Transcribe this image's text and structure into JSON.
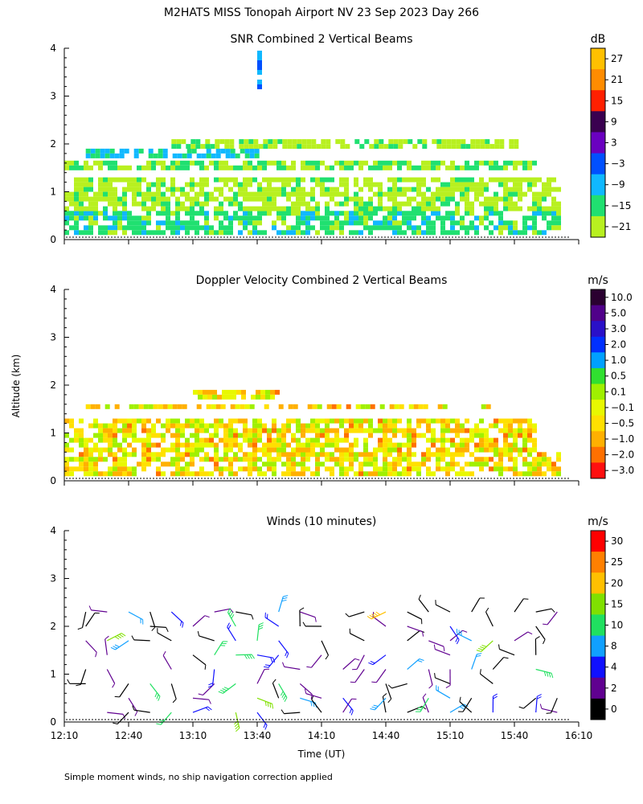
{
  "title": "M2HATS MISS Tonopah Airport NV  23 Sep 2023 Day 266",
  "ylabel": "Altitude (km)",
  "xlabel": "Time (UT)",
  "footnote": "Simple moment winds, no ship navigation correction applied",
  "x_ticks": [
    "12:10",
    "12:40",
    "13:10",
    "13:40",
    "14:10",
    "14:40",
    "15:10",
    "15:40",
    "16:10"
  ],
  "y_ticks": [
    "0",
    "1",
    "2",
    "3",
    "4"
  ],
  "panels": [
    {
      "title": "SNR Combined 2 Vertical Beams",
      "unit": "dB",
      "colorbar_labels": [
        "27",
        "21",
        "15",
        "9",
        "3",
        "−3",
        "−9",
        "−15",
        "−21"
      ],
      "colors": [
        "#ffc000",
        "#ff8c00",
        "#ff2000",
        "#3a0050",
        "#6a00c0",
        "#0050ff",
        "#10b8ff",
        "#20e070",
        "#b8f020"
      ]
    },
    {
      "title": "Doppler Velocity Combined 2 Vertical Beams",
      "unit": "m/s",
      "colorbar_labels": [
        "10.0",
        "5.0",
        "3.0",
        "2.0",
        "1.0",
        "0.5",
        "0.1",
        "−0.1",
        "−0.5",
        "−1.0",
        "−2.0",
        "−3.0"
      ],
      "colors": [
        "#2a0030",
        "#50008a",
        "#2a10c8",
        "#0030ff",
        "#00a0ff",
        "#30e030",
        "#a0f000",
        "#e8f800",
        "#ffe000",
        "#ffb000",
        "#ff7000",
        "#ff1010"
      ]
    },
    {
      "title": "Winds (10 minutes)",
      "unit": "m/s",
      "colorbar_labels": [
        "30",
        "25",
        "20",
        "15",
        "10",
        "8",
        "4",
        "2",
        "0"
      ],
      "colors": [
        "#ff0000",
        "#ff8000",
        "#ffc000",
        "#80e000",
        "#20e060",
        "#10a0ff",
        "#1010ff",
        "#600090",
        "#000000"
      ]
    }
  ],
  "chart_data": [
    {
      "type": "heatmap",
      "title": "SNR Combined 2 Vertical Beams",
      "colorbar_unit": "dB",
      "x_range": [
        "12:10",
        "16:10"
      ],
      "ylim": [
        0,
        4
      ],
      "ylabel": "Altitude (km)",
      "layers": [
        {
          "t_start": "12:10",
          "t_end": "16:00",
          "alt_min": 0.1,
          "alt_max": 0.6,
          "snr_db": -15
        },
        {
          "t_start": "12:10",
          "t_end": "16:00",
          "alt_min": 0.6,
          "alt_max": 1.3,
          "snr_db": -21
        },
        {
          "t_start": "12:20",
          "t_end": "13:40",
          "alt_min": 1.75,
          "alt_max": 1.9,
          "snr_db": -12
        },
        {
          "t_start": "12:10",
          "t_end": "15:50",
          "alt_min": 1.45,
          "alt_max": 1.65,
          "snr_db": -18
        },
        {
          "t_start": "13:00",
          "t_end": "15:40",
          "alt_min": 1.9,
          "alt_max": 2.1,
          "snr_db": -21
        },
        {
          "t_start": "13:40",
          "t_end": "13:42",
          "alt_min": 3.0,
          "alt_max": 3.95,
          "snr_db": -3
        }
      ]
    },
    {
      "type": "heatmap",
      "title": "Doppler Velocity Combined 2 Vertical Beams",
      "colorbar_unit": "m/s",
      "x_range": [
        "12:10",
        "16:10"
      ],
      "ylim": [
        0,
        4
      ],
      "ylabel": "Altitude (km)",
      "layers": [
        {
          "t_start": "12:10",
          "t_end": "16:00",
          "alt_min": 0.1,
          "alt_max": 0.6,
          "velocity_ms": -0.3
        },
        {
          "t_start": "12:10",
          "t_end": "15:50",
          "alt_min": 0.6,
          "alt_max": 1.3,
          "velocity_ms": 0.0
        },
        {
          "t_start": "13:10",
          "t_end": "13:50",
          "alt_min": 1.75,
          "alt_max": 1.9,
          "velocity_ms": -0.5
        },
        {
          "t_start": "12:20",
          "t_end": "15:30",
          "alt_min": 1.5,
          "alt_max": 1.6,
          "velocity_ms": -0.1
        }
      ]
    },
    {
      "type": "scatter",
      "title": "Winds (10 minutes)",
      "colorbar_unit": "m/s",
      "x_range": [
        "12:10",
        "16:10"
      ],
      "ylim": [
        0,
        4
      ],
      "ylabel": "Altitude (km)",
      "xlabel": "Time (UT)",
      "profiles_times": [
        "12:20",
        "12:30",
        "12:40",
        "12:50",
        "13:00",
        "13:10",
        "13:20",
        "13:30",
        "13:40",
        "13:50",
        "14:00",
        "14:10",
        "14:20",
        "14:30",
        "14:40",
        "14:50",
        "15:00",
        "15:10",
        "15:20",
        "15:30",
        "15:40",
        "15:50",
        "16:00"
      ],
      "altitudes_km": [
        0.2,
        0.5,
        0.8,
        1.1,
        1.4,
        1.7,
        2.0,
        2.3
      ],
      "speed_range_ms": [
        0,
        30
      ]
    }
  ]
}
